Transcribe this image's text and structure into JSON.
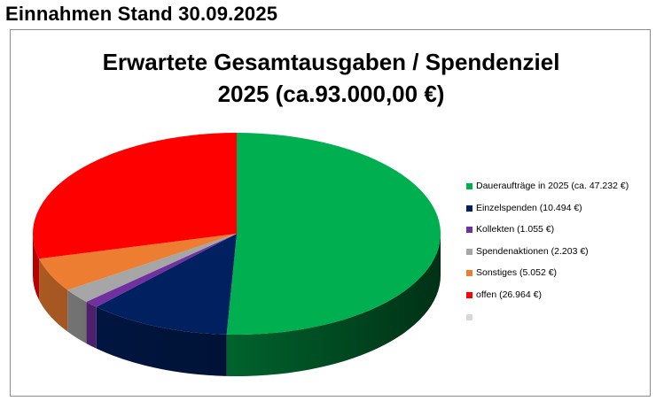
{
  "heading": "Einnahmen Stand 30.09.2025",
  "chart_data": {
    "type": "pie",
    "title_line1": "Erwartete Gesamtausgaben / Spendenziel",
    "title_line2": "2025 (ca.93.000,00 €)",
    "style": "3d-exploded-none",
    "legend_position": "right",
    "slices": [
      {
        "label": "Daueraufträge in 2025 (ca. 47.232 €)",
        "value": 47232,
        "color": "#00b050"
      },
      {
        "label": "Einzelspenden (10.494 €)",
        "value": 10494,
        "color": "#002060"
      },
      {
        "label": "Kollekten (1.055 €)",
        "value": 1055,
        "color": "#7030a0"
      },
      {
        "label": "Spendenaktionen (2.203 €)",
        "value": 2203,
        "color": "#a6a6a6"
      },
      {
        "label": "Sonstiges (5.052 €)",
        "value": 5052,
        "color": "#ed7d31"
      },
      {
        "label": "offen (26.964 €)",
        "value": 26964,
        "color": "#ff0000"
      },
      {
        "label": "",
        "value": 0,
        "color": "#d9d9d9"
      }
    ]
  }
}
